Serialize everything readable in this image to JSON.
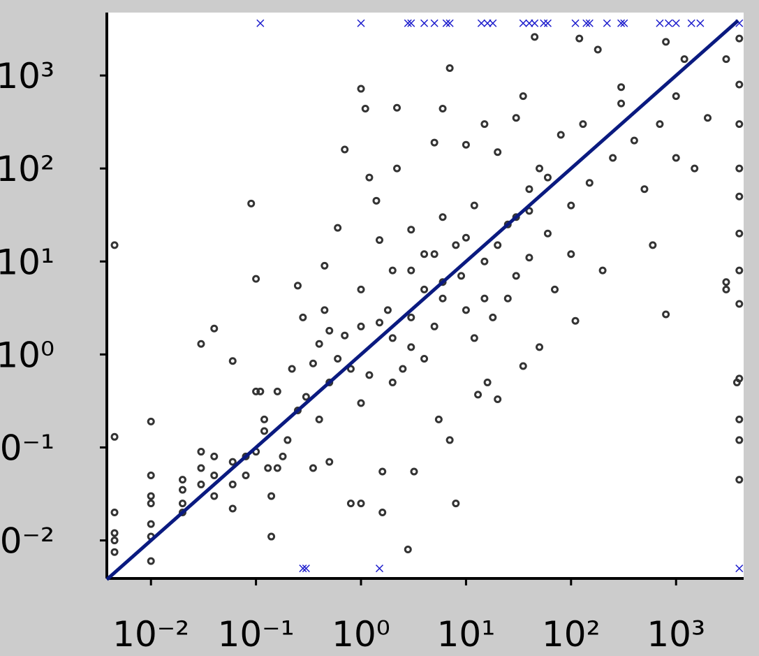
{
  "chart_data": {
    "type": "scatter",
    "log_x": true,
    "log_y": true,
    "xlim": [
      0.0038,
      4400
    ],
    "ylim": [
      0.0039,
      4750
    ],
    "xticks": [
      {
        "value": 0.01,
        "label": "10⁻²"
      },
      {
        "value": 0.1,
        "label": "10⁻¹"
      },
      {
        "value": 1,
        "label": "10⁰"
      },
      {
        "value": 10,
        "label": "10¹"
      },
      {
        "value": 100,
        "label": "10²"
      },
      {
        "value": 1000,
        "label": "10³"
      }
    ],
    "yticks": [
      {
        "value": 0.01,
        "label": "10⁻²"
      },
      {
        "value": 0.1,
        "label": "10⁻¹"
      },
      {
        "value": 1,
        "label": "10⁰"
      },
      {
        "value": 10,
        "label": "10¹"
      },
      {
        "value": 100,
        "label": "10²"
      },
      {
        "value": 1000,
        "label": "10³"
      }
    ],
    "series": [
      {
        "marker": "o",
        "color": "#333333",
        "x": [
          0.0045,
          0.0045,
          0.0045,
          0.0045,
          0.0045,
          0.0045,
          0.01,
          0.01,
          0.01,
          0.01,
          0.01,
          0.01,
          0.01,
          0.02,
          0.02,
          0.02,
          0.02,
          0.03,
          0.03,
          0.03,
          0.03,
          0.04,
          0.04,
          0.04,
          0.04,
          0.06,
          0.06,
          0.06,
          0.06,
          0.08,
          0.08,
          0.09,
          0.1,
          0.1,
          0.1,
          0.11,
          0.12,
          0.12,
          0.13,
          0.14,
          0.14,
          0.16,
          0.18,
          0.2,
          0.22,
          0.25,
          0.25,
          0.28,
          0.3,
          0.35,
          0.4,
          0.4,
          0.45,
          0.45,
          0.5,
          0.5,
          0.6,
          0.6,
          0.7,
          0.7,
          0.8,
          0.8,
          1,
          1,
          1,
          1,
          1,
          1.1,
          1.2,
          1.2,
          1.4,
          1.5,
          1.6,
          1.6,
          1.8,
          2,
          2,
          2.2,
          2.2,
          2.5,
          2.8,
          3,
          3,
          3.2,
          4,
          4,
          5,
          5,
          5,
          5.5,
          6,
          6,
          6,
          7,
          7,
          8,
          9,
          10,
          10,
          10,
          12,
          13,
          15,
          15,
          16,
          18,
          20,
          20,
          20,
          25,
          30,
          30,
          30,
          35,
          35,
          40,
          40,
          45,
          50,
          50,
          60,
          60,
          70,
          80,
          100,
          100,
          110,
          120,
          130,
          150,
          180,
          200,
          250,
          300,
          300,
          400,
          500,
          600,
          700,
          800,
          800,
          1000,
          1000,
          1200,
          1500,
          2000,
          3000,
          3000,
          4000,
          4000,
          4000,
          4000,
          4000,
          4000,
          4000,
          4000,
          4000,
          4000,
          4000,
          4000,
          3800,
          3000,
          0.35,
          0.16,
          0.5,
          2,
          1.5,
          3,
          8,
          12,
          25,
          6,
          4,
          3,
          15,
          40
        ],
        "values": [
          15,
          0.13,
          0.02,
          0.012,
          0.01,
          0.0075,
          0.19,
          0.05,
          0.03,
          0.025,
          0.015,
          0.011,
          0.006,
          0.045,
          0.035,
          0.025,
          0.02,
          1.3,
          0.09,
          0.06,
          0.04,
          1.9,
          0.08,
          0.05,
          0.03,
          0.85,
          0.07,
          0.04,
          0.022,
          0.08,
          0.05,
          42,
          6.5,
          0.4,
          0.09,
          0.4,
          0.2,
          0.15,
          0.06,
          0.03,
          0.011,
          0.06,
          0.08,
          0.12,
          0.7,
          5.5,
          0.25,
          2.5,
          0.35,
          0.8,
          1.3,
          0.2,
          9,
          3,
          0.5,
          0.07,
          23,
          0.9,
          160,
          1.6,
          0.7,
          0.025,
          720,
          5,
          2,
          0.3,
          0.025,
          440,
          80,
          0.6,
          45,
          17,
          0.055,
          0.02,
          3,
          8,
          1.5,
          450,
          100,
          0.7,
          0.008,
          22,
          2.5,
          0.055,
          5,
          0.9,
          190,
          12,
          2,
          0.2,
          440,
          30,
          4,
          1200,
          0.12,
          0.025,
          7,
          180,
          18,
          3,
          1.5,
          0.37,
          300,
          10,
          0.5,
          2.5,
          150,
          15,
          0.33,
          4,
          350,
          30,
          7,
          600,
          0.75,
          60,
          11,
          2600,
          100,
          1.2,
          80,
          20,
          5,
          230,
          40,
          12,
          2.3,
          2500,
          300,
          70,
          1900,
          8,
          130,
          750,
          500,
          200,
          60,
          15,
          300,
          2.7,
          2300,
          600,
          130,
          1500,
          100,
          350,
          6,
          1500,
          2500,
          800,
          300,
          100,
          50,
          20,
          8,
          3.5,
          0.55,
          0.2,
          0.12,
          0.045,
          0.5,
          5,
          0.06,
          0.4,
          1.8,
          0.5,
          2.2,
          1.2,
          15,
          40,
          25,
          6,
          12,
          8,
          4,
          35
        ]
      },
      {
        "marker": "x",
        "color": "#1a1acc",
        "x": [
          0.11,
          1,
          2.8,
          3,
          4,
          5,
          6.5,
          7,
          14,
          16,
          18,
          35,
          40,
          45,
          55,
          60,
          110,
          140,
          150,
          220,
          300,
          320,
          700,
          850,
          1000,
          1400,
          1700,
          4000,
          0.28,
          0.3,
          1.5,
          4000
        ],
        "values": [
          3650,
          3650,
          3650,
          3650,
          3650,
          3650,
          3650,
          3650,
          3650,
          3650,
          3650,
          3650,
          3650,
          3650,
          3650,
          3650,
          3650,
          3650,
          3650,
          3650,
          3650,
          3650,
          3650,
          3650,
          3650,
          3650,
          3650,
          3650,
          0.005,
          0.005,
          0.005,
          0.005
        ]
      },
      {
        "marker": "line",
        "color": "#0a1a80",
        "x": [
          0.0038,
          3900
        ],
        "values": [
          0.0038,
          3900
        ]
      }
    ]
  }
}
